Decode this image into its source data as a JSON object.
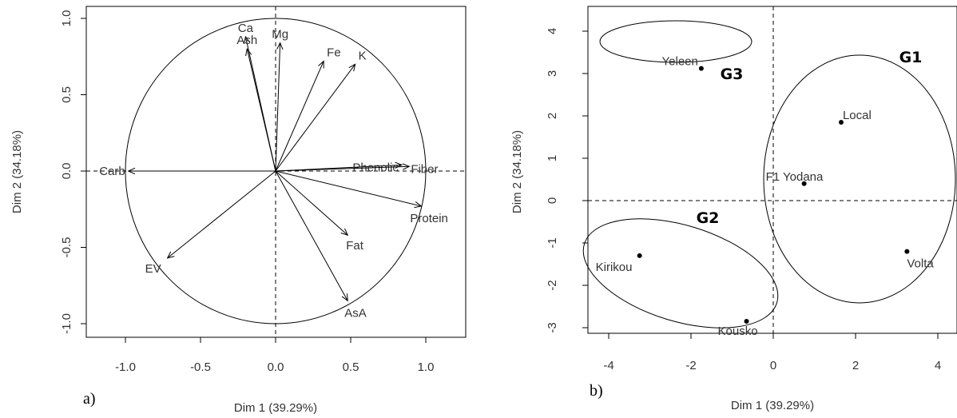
{
  "chart_data": [
    {
      "type": "scatter",
      "subtype": "pca-correlation-circle",
      "panel_label": "a)",
      "xlabel": "Dim 1 (39.29%)",
      "ylabel": "Dim 2 (34.18%)",
      "xlim": [
        -1.25,
        1.25
      ],
      "ylim": [
        -1.1,
        1.1
      ],
      "xticks": [
        -1.0,
        -0.5,
        0.0,
        0.5,
        1.0
      ],
      "xtick_labels": [
        "-1.0",
        "-0.5",
        "0.0",
        "0.5",
        "1.0"
      ],
      "yticks": [
        -1.0,
        -0.5,
        0.0,
        0.5,
        1.0
      ],
      "ytick_labels": [
        "-1.0",
        "-0.5",
        "0.0",
        "0.5",
        "1.0"
      ],
      "unit_circle": true,
      "vectors": [
        {
          "name": "Ca",
          "x": -0.2,
          "y": 0.88
        },
        {
          "name": "Ash",
          "x": -0.19,
          "y": 0.8
        },
        {
          "name": "Mg",
          "x": 0.03,
          "y": 0.84
        },
        {
          "name": "Fe",
          "x": 0.32,
          "y": 0.72
        },
        {
          "name": "K",
          "x": 0.53,
          "y": 0.7
        },
        {
          "name": "Phenolic",
          "x": 0.84,
          "y": 0.04
        },
        {
          "name": "Fiber",
          "x": 0.89,
          "y": 0.03
        },
        {
          "name": "Protein",
          "x": 0.97,
          "y": -0.23
        },
        {
          "name": "Fat",
          "x": 0.48,
          "y": -0.42
        },
        {
          "name": "AsA",
          "x": 0.48,
          "y": -0.85
        },
        {
          "name": "EV",
          "x": -0.72,
          "y": -0.57
        },
        {
          "name": "Carb",
          "x": -0.98,
          "y": 0.0
        }
      ]
    },
    {
      "type": "scatter",
      "subtype": "pca-individuals",
      "panel_label": "b)",
      "xlabel": "Dim 1 (39.29%)",
      "ylabel": "Dim 2 (34.18%)",
      "xlim": [
        -4.5,
        4.4
      ],
      "ylim": [
        -3.65,
        4.05
      ],
      "xticks": [
        -4,
        -2,
        0,
        2,
        4
      ],
      "xtick_labels": [
        "-4",
        "-2",
        "0",
        "2",
        "4"
      ],
      "yticks": [
        -3,
        -2,
        -1,
        0,
        1,
        2,
        3,
        4
      ],
      "ytick_labels": [
        "-3",
        "-2",
        "-1",
        "0",
        "1",
        "2",
        "3",
        "4"
      ],
      "points": [
        {
          "name": "Yeleen",
          "x": -1.75,
          "y": 3.12
        },
        {
          "name": "Local",
          "x": 1.65,
          "y": 1.85
        },
        {
          "name": "F1 Yodana",
          "x": 0.75,
          "y": 0.4
        },
        {
          "name": "Volta",
          "x": 3.25,
          "y": -1.2
        },
        {
          "name": "Kirikou",
          "x": -3.25,
          "y": -1.3
        },
        {
          "name": "Kousko",
          "x": -0.65,
          "y": -2.85
        }
      ],
      "groups": [
        {
          "name": "G1",
          "members": [
            "Local",
            "F1 Yodana",
            "Volta"
          ]
        },
        {
          "name": "G2",
          "members": [
            "Kirikou",
            "Kousko"
          ]
        },
        {
          "name": "G3",
          "members": [
            "Yeleen"
          ]
        }
      ]
    }
  ]
}
